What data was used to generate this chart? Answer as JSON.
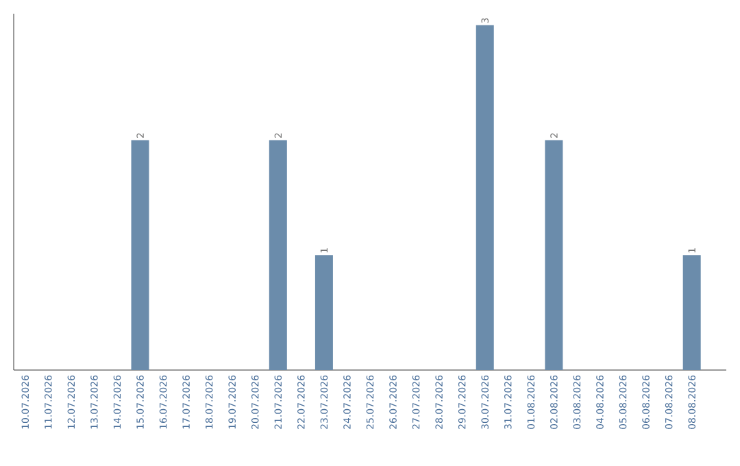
{
  "chart_data": {
    "type": "bar",
    "categories": [
      "10.07.2026",
      "11.07.2026",
      "12.07.2026",
      "13.07.2026",
      "14.07.2026",
      "15.07.2026",
      "16.07.2026",
      "17.07.2026",
      "18.07.2026",
      "19.07.2026",
      "20.07.2026",
      "21.07.2026",
      "22.07.2026",
      "23.07.2026",
      "24.07.2026",
      "25.07.2026",
      "26.07.2026",
      "27.07.2026",
      "28.07.2026",
      "29.07.2026",
      "30.07.2026",
      "31.07.2026",
      "01.08.2026",
      "02.08.2026",
      "03.08.2026",
      "04.08.2026",
      "05.08.2026",
      "06.08.2026",
      "07.08.2026",
      "08.08.2026"
    ],
    "values": [
      0,
      0,
      0,
      0,
      0,
      2,
      0,
      0,
      0,
      0,
      0,
      2,
      0,
      1,
      0,
      0,
      0,
      0,
      0,
      0,
      3,
      0,
      0,
      2,
      0,
      0,
      0,
      0,
      0,
      1
    ],
    "value_labels": [
      null,
      null,
      null,
      null,
      null,
      "2",
      null,
      null,
      null,
      null,
      null,
      "2",
      null,
      "1",
      null,
      null,
      null,
      null,
      null,
      null,
      "3",
      null,
      null,
      "2",
      null,
      null,
      null,
      null,
      null,
      "1"
    ],
    "color": "#6b8cab",
    "ylim": [
      0,
      3.1
    ]
  }
}
